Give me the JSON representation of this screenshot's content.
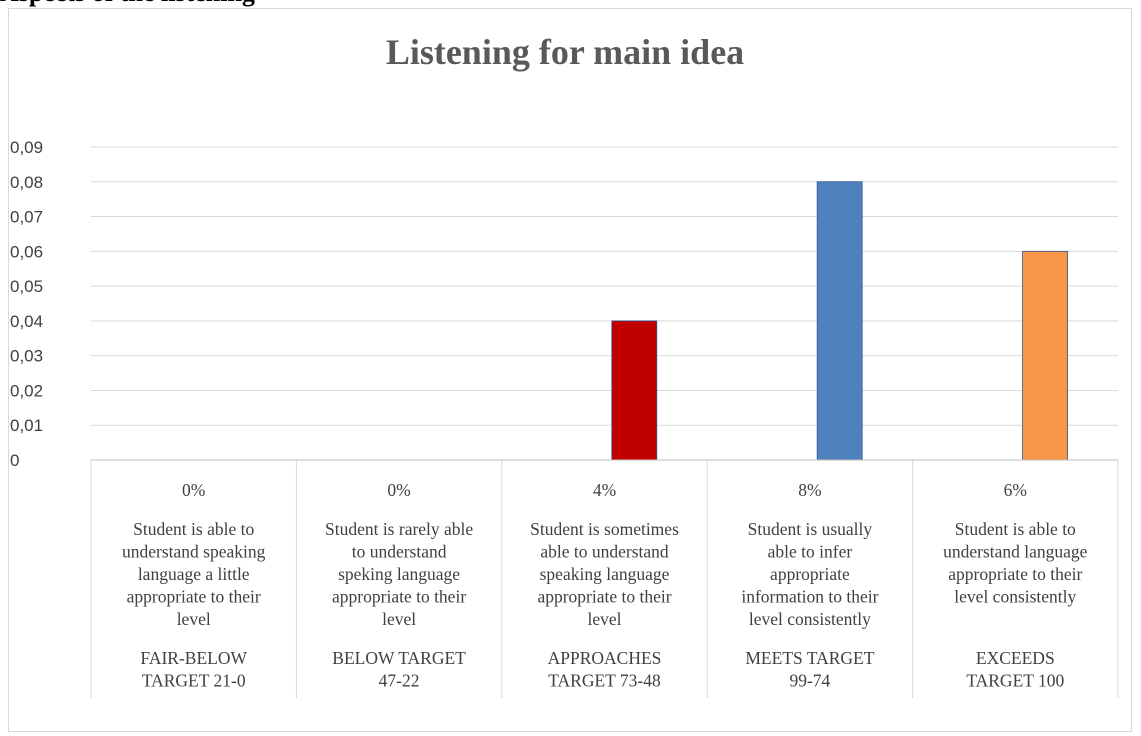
{
  "page_heading_fragment": "Aspects of the listening",
  "chart_data": {
    "type": "bar",
    "title": "Listening for main idea",
    "xlabel": "",
    "ylabel": "",
    "ylim": [
      0,
      0.09
    ],
    "y_ticks": [
      "0",
      "0,01",
      "0,02",
      "0,03",
      "0,04",
      "0,05",
      "0,06",
      "0,07",
      "0,08",
      "0,09"
    ],
    "grid": true,
    "legend": "table-below",
    "categories": [
      {
        "value": 0,
        "value_label": "0%",
        "description": [
          "Student is able to",
          "understand speaking",
          "language a little",
          "appropriate to their",
          "level"
        ],
        "target": [
          "FAIR-BELOW",
          "TARGET  21-0"
        ],
        "color": "#4f81bd"
      },
      {
        "value": 0,
        "value_label": "0%",
        "description": [
          "Student is rarely able",
          "to understand",
          "speking language",
          "appropriate to their",
          "level"
        ],
        "target": [
          "BELOW TARGET",
          "47-22"
        ],
        "color": "#4f81bd"
      },
      {
        "value": 0.04,
        "value_label": "4%",
        "description": [
          "Student is sometimes",
          "able to understand",
          "speaking language",
          "appropriate to their",
          "level"
        ],
        "target": [
          "APPROACHES",
          "TARGET  73-48"
        ],
        "color": "#c00000"
      },
      {
        "value": 0.08,
        "value_label": "8%",
        "description": [
          "Student is usually",
          "able to infer",
          "appropriate",
          "information to their",
          "level consistently"
        ],
        "target": [
          "MEETS TARGET",
          "99-74"
        ],
        "color": "#4f81bd"
      },
      {
        "value": 0.06,
        "value_label": "6%",
        "description": [
          "Student is able to",
          "understand language",
          "appropriate to their",
          "level consistently"
        ],
        "target": [
          "EXCEEDS",
          "TARGET 100"
        ],
        "color": "#f79646"
      }
    ]
  }
}
